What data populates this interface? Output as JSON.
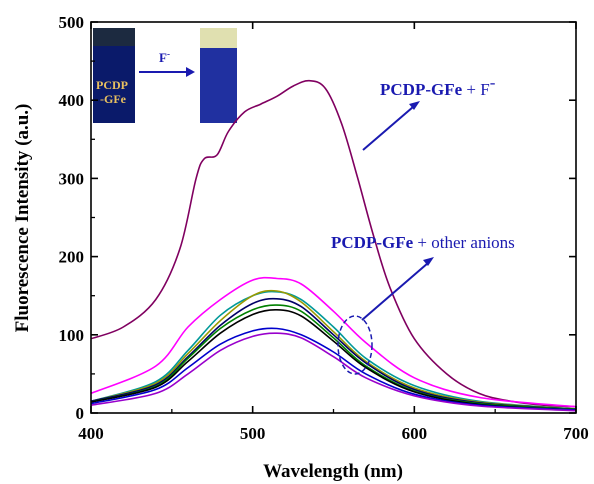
{
  "chart_data": {
    "type": "line",
    "xlabel": "Wavelength (nm)",
    "ylabel": "Fluorescence Intensity (a.u.)",
    "xlim": [
      400,
      700
    ],
    "ylim": [
      0,
      500
    ],
    "x_ticks": [
      "400",
      "500",
      "600",
      "700"
    ],
    "y_ticks": [
      "0",
      "100",
      "200",
      "300",
      "400",
      "500"
    ],
    "grid": false,
    "annotations": {
      "fluoride": {
        "bold": "PCDP-GFe",
        "rest": " + F",
        "sup": "-"
      },
      "others": {
        "bold": "PCDP-GFe",
        "rest": " + other anions"
      }
    },
    "inset": {
      "vial_label_line1": "PCDP",
      "vial_label_line2": "-GFe",
      "arrow_label": "F",
      "arrow_label_sup": "-"
    },
    "series": [
      {
        "color": "#800060",
        "x": [
          400,
          420,
          440,
          455,
          465,
          470,
          478,
          485,
          495,
          505,
          515,
          525,
          535,
          545,
          555,
          565,
          575,
          585,
          600,
          620,
          640,
          660,
          680,
          700
        ],
        "values": [
          95,
          110,
          145,
          210,
          300,
          325,
          330,
          360,
          385,
          395,
          405,
          418,
          425,
          415,
          370,
          300,
          225,
          160,
          95,
          50,
          25,
          15,
          10,
          8
        ]
      },
      {
        "color": "#ff00ff",
        "x": [
          400,
          440,
          460,
          480,
          500,
          515,
          530,
          550,
          570,
          600,
          640,
          700
        ],
        "values": [
          25,
          60,
          110,
          145,
          170,
          172,
          165,
          130,
          90,
          45,
          20,
          8
        ]
      },
      {
        "color": "#009999",
        "x": [
          400,
          440,
          460,
          480,
          500,
          515,
          530,
          550,
          570,
          600,
          640,
          700
        ],
        "values": [
          15,
          40,
          80,
          125,
          150,
          155,
          145,
          110,
          70,
          35,
          15,
          5
        ]
      },
      {
        "color": "#999900",
        "x": [
          400,
          440,
          460,
          480,
          500,
          515,
          530,
          550,
          570,
          600,
          640,
          700
        ],
        "values": [
          15,
          38,
          76,
          118,
          150,
          156,
          142,
          104,
          66,
          32,
          14,
          5
        ]
      },
      {
        "color": "#000066",
        "x": [
          400,
          440,
          460,
          480,
          500,
          515,
          530,
          550,
          570,
          600,
          640,
          700
        ],
        "values": [
          15,
          36,
          72,
          112,
          140,
          146,
          136,
          100,
          64,
          30,
          13,
          5
        ]
      },
      {
        "color": "#008000",
        "x": [
          400,
          440,
          460,
          480,
          500,
          515,
          530,
          550,
          570,
          600,
          640,
          700
        ],
        "values": [
          14,
          34,
          70,
          108,
          132,
          138,
          130,
          96,
          60,
          28,
          12,
          5
        ]
      },
      {
        "color": "#000000",
        "x": [
          400,
          440,
          460,
          480,
          500,
          515,
          530,
          550,
          570,
          600,
          640,
          700
        ],
        "values": [
          14,
          33,
          66,
          102,
          126,
          132,
          124,
          92,
          58,
          27,
          11,
          4
        ]
      },
      {
        "color": "#0000cc",
        "x": [
          400,
          440,
          460,
          480,
          500,
          515,
          530,
          550,
          570,
          600,
          640,
          700
        ],
        "values": [
          12,
          30,
          58,
          88,
          105,
          108,
          100,
          78,
          50,
          24,
          10,
          4
        ]
      },
      {
        "color": "#9900cc",
        "x": [
          400,
          440,
          460,
          480,
          500,
          515,
          530,
          550,
          570,
          600,
          640,
          700
        ],
        "values": [
          10,
          25,
          50,
          80,
          98,
          102,
          96,
          72,
          45,
          22,
          9,
          3
        ]
      }
    ]
  }
}
